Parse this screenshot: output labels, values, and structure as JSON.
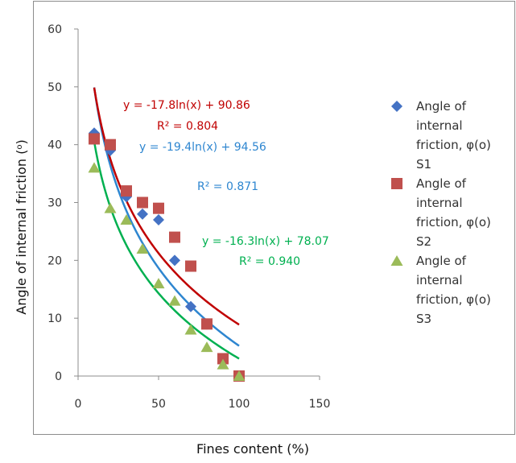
{
  "chart_data": {
    "type": "scatter",
    "xlabel": "Fines content (%)",
    "ylabel": "Angle of internal friction (°)",
    "ylabel_main": "Angle of internal friction (",
    "ylabel_sup": "o",
    "ylabel_close": ")",
    "xlim": [
      0,
      150
    ],
    "ylim": [
      0,
      60
    ],
    "xticks": [
      "0",
      "50",
      "100",
      "150"
    ],
    "yticks": [
      "0",
      "10",
      "20",
      "30",
      "40",
      "50",
      "60"
    ],
    "grid": false,
    "legend_position": "right",
    "series": [
      {
        "name": "Angle of internal friction, φ(o) S1",
        "legend_lines": [
          "Angle of",
          "internal",
          "friction, φ(o)",
          "S1"
        ],
        "marker": "diamond",
        "color": "#4472C4",
        "x": [
          10,
          20,
          30,
          40,
          50,
          60,
          70,
          80,
          90,
          100
        ],
        "y": [
          42,
          39,
          31,
          28,
          27,
          20,
          12,
          9,
          3,
          0
        ],
        "trendline": {
          "type": "log",
          "a": -19.4,
          "b": 94.56,
          "color": "#2E86D0",
          "equation": "y = -19.4ln(x) + 94.56",
          "r2_label": "R² = 0.871"
        }
      },
      {
        "name": "Angle of internal friction, φ(o) S2",
        "legend_lines": [
          "Angle of",
          "internal",
          "friction, φ(o)",
          "S2"
        ],
        "marker": "square",
        "color": "#C0504D",
        "x": [
          10,
          20,
          30,
          40,
          50,
          60,
          70,
          80,
          90,
          100
        ],
        "y": [
          41,
          40,
          32,
          30,
          29,
          24,
          19,
          9,
          3,
          0
        ],
        "trendline": {
          "type": "log",
          "a": -17.8,
          "b": 90.86,
          "color": "#C00000",
          "equation": "y = -17.8ln(x) + 90.86",
          "r2_label": "R² = 0.804"
        }
      },
      {
        "name": "Angle of internal friction, φ(o) S3",
        "legend_lines": [
          "Angle of",
          "internal",
          "friction, φ(o)",
          "S3"
        ],
        "marker": "triangle",
        "color": "#9BBB59",
        "x": [
          10,
          20,
          30,
          40,
          50,
          60,
          70,
          80,
          90,
          100
        ],
        "y": [
          36,
          29,
          27,
          22,
          16,
          13,
          8,
          5,
          2,
          0
        ],
        "trendline": {
          "type": "log",
          "a": -16.3,
          "b": 78.07,
          "color": "#00B050",
          "equation": "y = -16.3ln(x) + 78.07",
          "r2_label": "R² = 0.940"
        }
      }
    ]
  }
}
